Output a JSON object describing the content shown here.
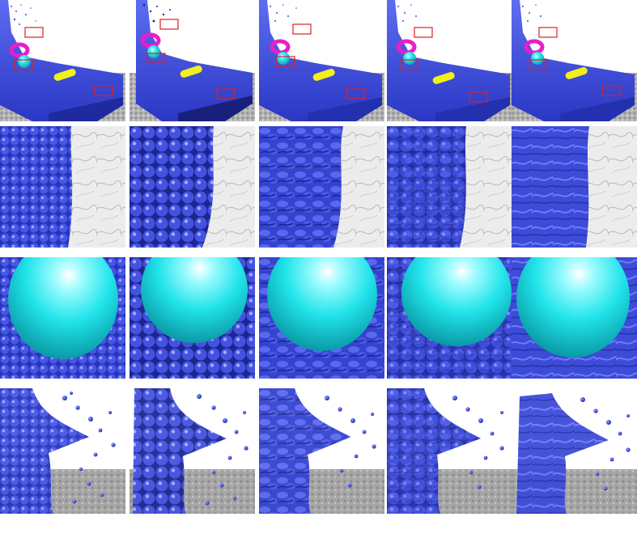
{
  "figure": {
    "rows": [
      {
        "name": "overview",
        "columns": 5
      },
      {
        "name": "surface-closeup",
        "columns": 5
      },
      {
        "name": "sphere-closeup",
        "columns": 5
      },
      {
        "name": "splash-closeup",
        "columns": 5
      }
    ],
    "colors": {
      "fluid": "#3f4ee0",
      "fluid_dark": "#1c2690",
      "fluid_light": "#8f9cff",
      "floor": "#a9a9a9",
      "marble": "#ececec",
      "sphere": "#21e4ea",
      "torus": "#e81ec8",
      "cylinder": "#f2ef1a",
      "highlight_box": "#e02020"
    }
  }
}
